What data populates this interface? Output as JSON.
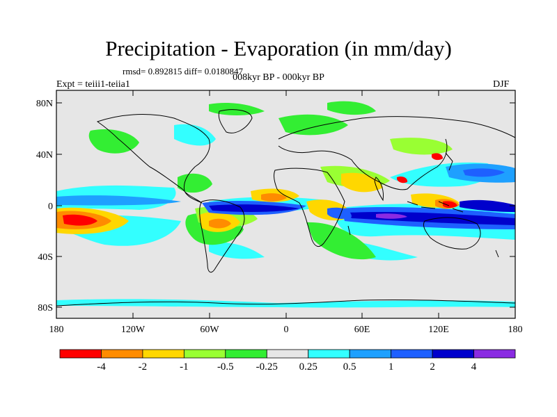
{
  "title": "Precipitation - Evaporation (in mm/day)",
  "stats": "rmsd= 0.892815 diff= 0.0180847",
  "experiment": "Expt = teiii1-teiia1",
  "period": "008kyr BP - 000kyr BP",
  "season": "DJF",
  "y_ticks": [
    "80N",
    "40N",
    "0",
    "40S",
    "80S"
  ],
  "x_ticks": [
    "180",
    "120W",
    "60W",
    "0",
    "60E",
    "120E",
    "180"
  ],
  "colorbar": {
    "colors": [
      "#ff0000",
      "#ff8c00",
      "#ffd700",
      "#99ff33",
      "#33ee33",
      "#e6e6e6",
      "#33ffff",
      "#1ea0ff",
      "#1e60ff",
      "#0000cc",
      "#8a2be2"
    ],
    "labels": [
      "-4",
      "-2",
      "-1",
      "-0.5",
      "-0.25",
      "0.25",
      "0.5",
      "1",
      "2",
      "4"
    ]
  },
  "chart_data": {
    "type": "heatmap",
    "title": "Precipitation - Evaporation (in mm/day)",
    "subtitle": "008kyr BP - 000kyr BP",
    "xlim": [
      -180,
      180
    ],
    "ylim": [
      -90,
      90
    ],
    "levels": [
      -4,
      -2,
      -1,
      -0.5,
      -0.25,
      0.25,
      0.5,
      1,
      2,
      4
    ],
    "regions": [
      {
        "lon": 170,
        "lat": -5,
        "value": 1.5
      },
      {
        "lon": -150,
        "lat": 2,
        "value": 0.7
      },
      {
        "lon": -40,
        "lat": -5,
        "value": 3
      },
      {
        "lon": 70,
        "lat": -12,
        "value": 2.5
      },
      {
        "lon": 135,
        "lat": 0,
        "value": -3
      },
      {
        "lon": -160,
        "lat": -20,
        "value": -4
      },
      {
        "lon": -55,
        "lat": -20,
        "value": -2
      },
      {
        "lon": 15,
        "lat": 8,
        "value": -1.5
      },
      {
        "lon": 135,
        "lat": 30,
        "value": 1.5
      }
    ]
  }
}
